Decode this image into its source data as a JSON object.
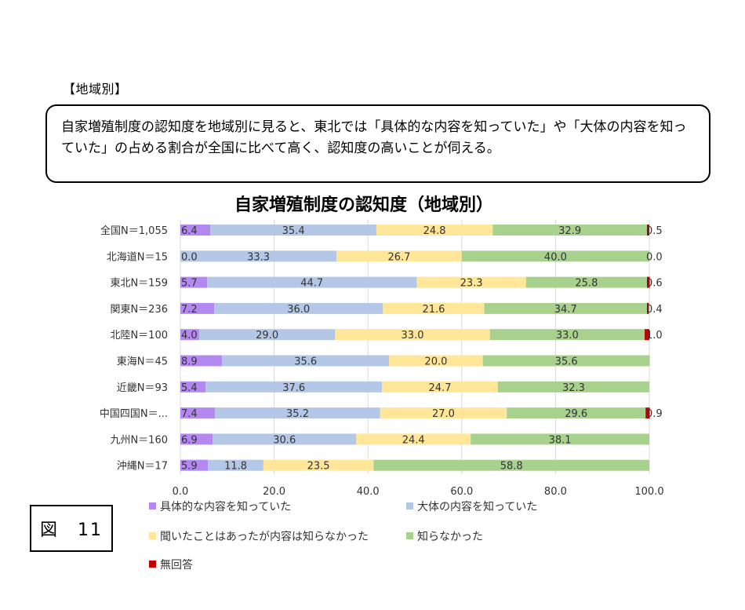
{
  "section_heading": "【地域別】",
  "summary_text": "自家増殖制度の認知度を地域別に見ると、東北では「具体的な内容を知っていた」や「大体の内容を知っていた」の占める割合が全国に比べて高く、認知度の高いことが伺える。",
  "figure_label": "図　11",
  "chart_data": {
    "type": "bar",
    "orientation": "horizontal",
    "stacked": true,
    "title": "自家増殖制度の認知度（地域別）",
    "categories": [
      "全国N＝1,055",
      "北海道N＝15",
      "東北N＝159",
      "関東N＝236",
      "北陸N＝100",
      "東海N＝45",
      "近畿N＝93",
      "中国四国N＝...",
      "九州N＝160",
      "沖縄N＝17"
    ],
    "series": [
      {
        "name": "具体的な内容を知っていた",
        "color": "#b388f0",
        "values": [
          6.4,
          0.0,
          5.7,
          7.2,
          4.0,
          8.9,
          5.4,
          7.4,
          6.9,
          5.9
        ],
        "labels": [
          "6.4",
          "0.0",
          "5.7",
          "7.2",
          "4.0",
          "8.9",
          "5.4",
          "7.4",
          "6.9",
          "5.9"
        ]
      },
      {
        "name": "大体の内容を知っていた",
        "color": "#b4c7e7",
        "values": [
          35.4,
          33.3,
          44.7,
          36.0,
          29.0,
          35.6,
          37.6,
          35.2,
          30.6,
          11.8
        ],
        "labels": [
          "35.4",
          "33.3",
          "44.7",
          "36.0",
          "29.0",
          "35.6",
          "37.6",
          "35.2",
          "30.6",
          "11.8"
        ]
      },
      {
        "name": "聞いたことはあったが内容は知らなかった",
        "color": "#ffe699",
        "values": [
          24.8,
          26.7,
          23.3,
          21.6,
          33.0,
          20.0,
          24.7,
          27.0,
          24.4,
          23.5
        ],
        "labels": [
          "24.8",
          "26.7",
          "23.3",
          "21.6",
          "33.0",
          "20.0",
          "24.7",
          "27.0",
          "24.4",
          "23.5"
        ]
      },
      {
        "name": "知らなかった",
        "color": "#a9d18e",
        "values": [
          32.9,
          40.0,
          25.8,
          34.7,
          33.0,
          35.6,
          32.3,
          29.6,
          38.1,
          58.8
        ],
        "labels": [
          "32.9",
          "40.0",
          "25.8",
          "34.7",
          "33.0",
          "35.6",
          "32.3",
          "29.6",
          "38.1",
          "58.8"
        ]
      },
      {
        "name": "無回答",
        "color": "#c00000",
        "values": [
          0.5,
          0.0,
          0.6,
          0.4,
          1.0,
          0,
          0,
          0.9,
          0,
          0
        ],
        "labels": [
          "0.5",
          "0.0",
          "0.6",
          "0.4",
          "1.0",
          "",
          "",
          "0.9",
          "",
          ""
        ]
      }
    ],
    "xlim": [
      0,
      100
    ],
    "xticks": [
      "0.0",
      "20.0",
      "40.0",
      "60.0",
      "80.0",
      "100.0"
    ],
    "legend_position": "bottom"
  }
}
